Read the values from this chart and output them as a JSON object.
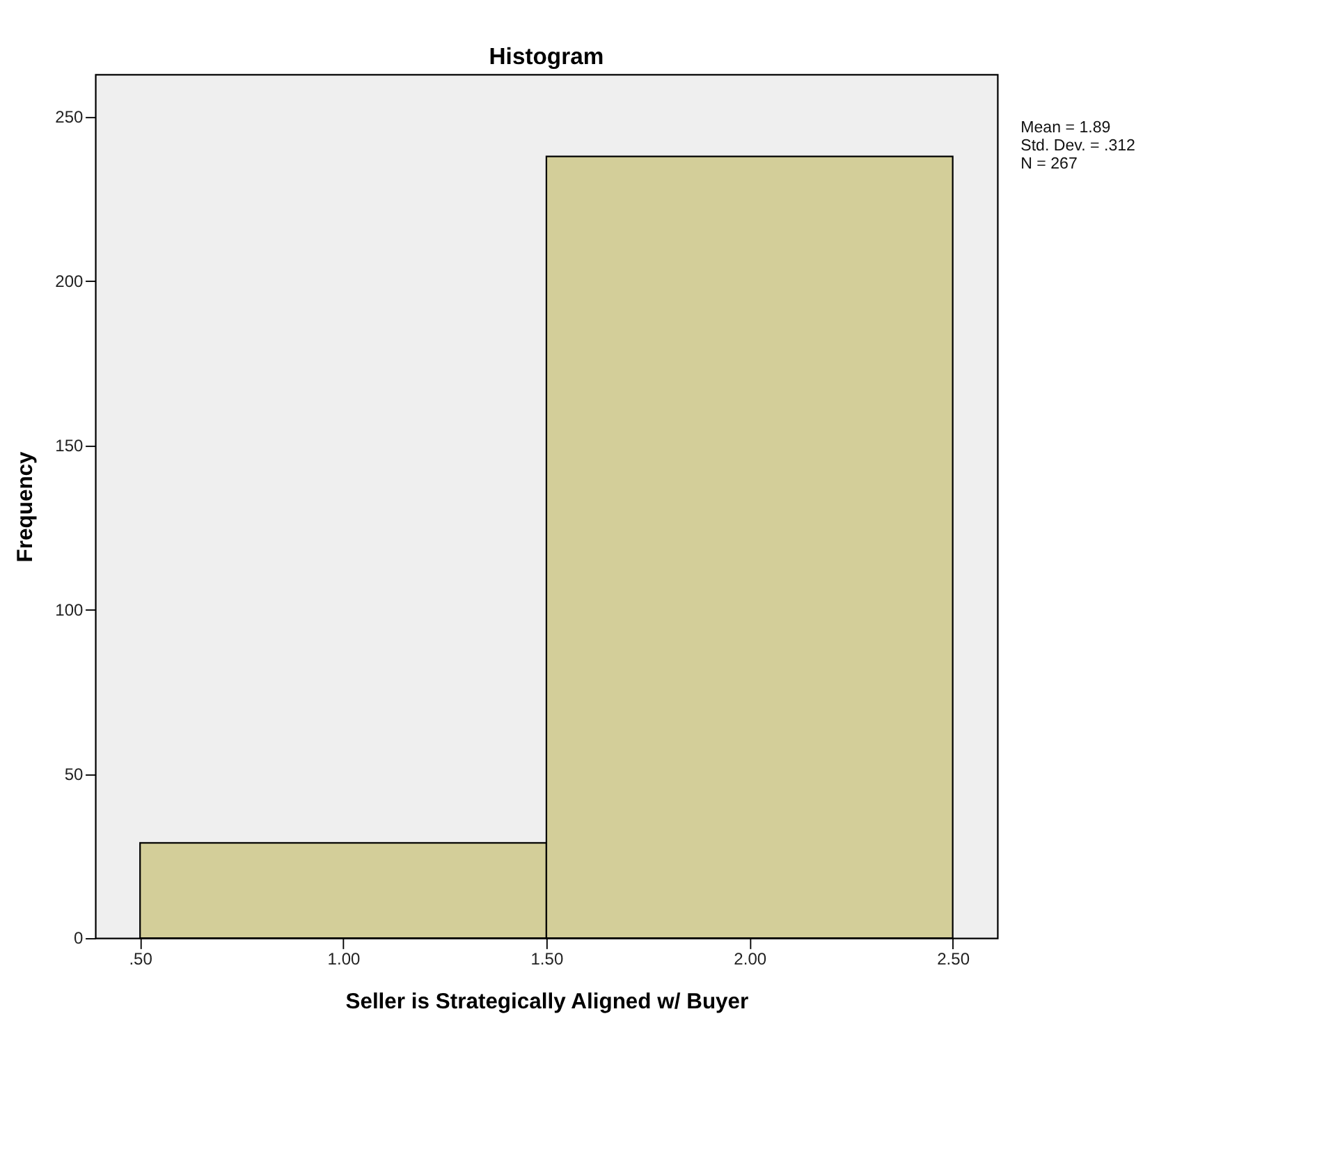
{
  "chart_data": {
    "type": "histogram",
    "title": "Histogram",
    "xlabel": "Seller is Strategically Aligned w/ Buyer",
    "ylabel": "Frequency",
    "bins": [
      0.5,
      1.5,
      2.5
    ],
    "values": [
      29,
      238
    ],
    "color": "#d3ce99",
    "xlim": [
      0.39,
      2.61
    ],
    "ylim": [
      0,
      263
    ],
    "xticks": [
      {
        "value": 0.5,
        "label": ".50"
      },
      {
        "value": 1.0,
        "label": "1.00"
      },
      {
        "value": 1.5,
        "label": "1.50"
      },
      {
        "value": 2.0,
        "label": "2.00"
      },
      {
        "value": 2.5,
        "label": "2.50"
      }
    ],
    "yticks": [
      0,
      50,
      100,
      150,
      200,
      250
    ],
    "annotations": [
      "Mean = 1.89",
      "Std. Dev. = .312",
      "N = 267"
    ],
    "grid": false
  }
}
